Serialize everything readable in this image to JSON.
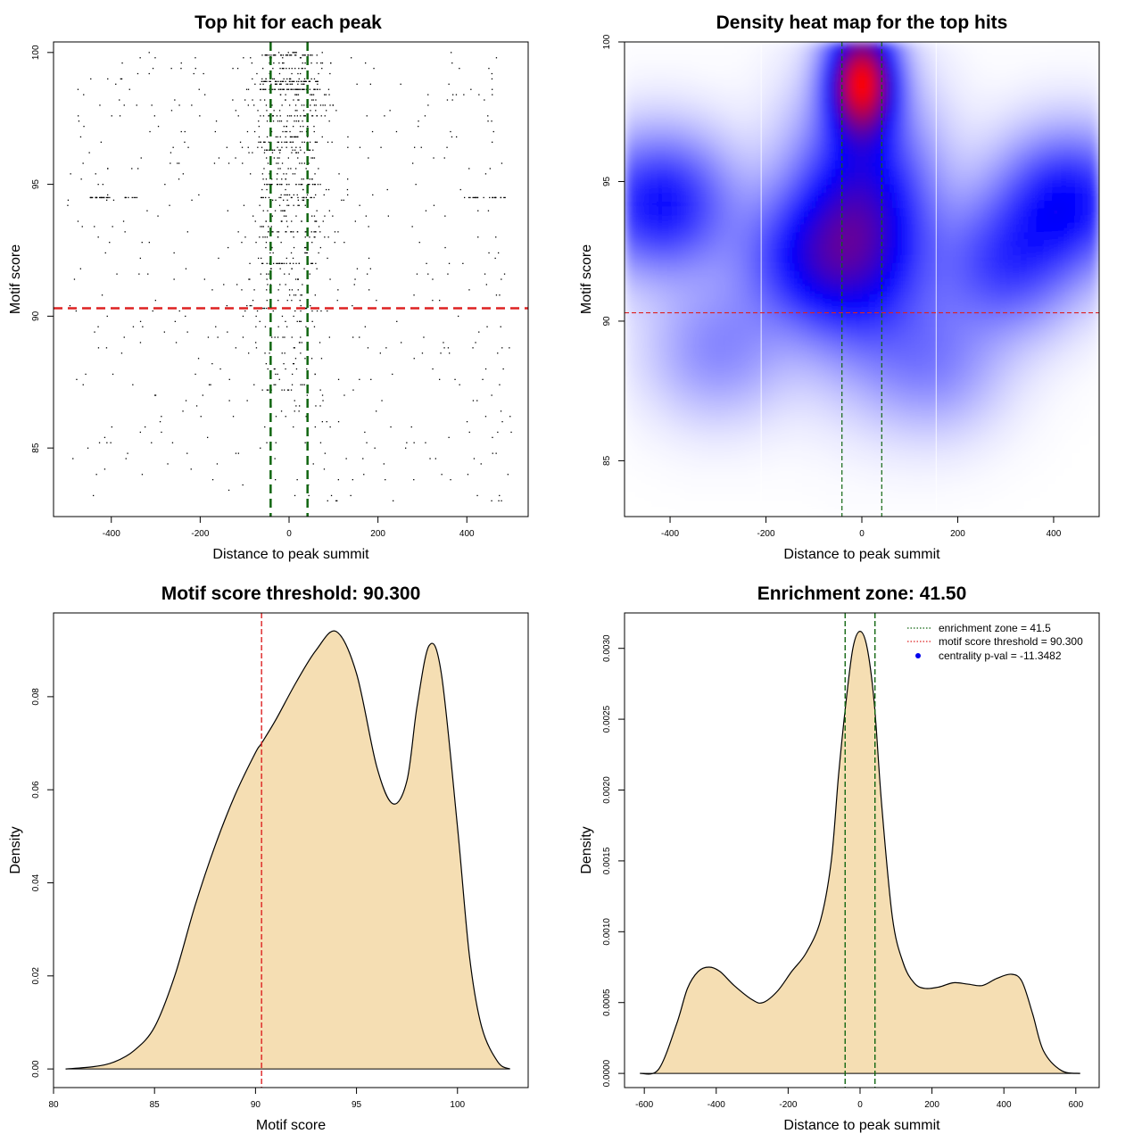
{
  "chart_data": [
    {
      "type": "scatter",
      "title": "Top hit for each peak",
      "xlabel": "Distance to peak summit",
      "ylabel": "Motif score",
      "xlim": [
        -530,
        538
      ],
      "ylim": [
        82.4,
        100.4
      ],
      "xticks": [
        -400,
        -200,
        0,
        200,
        400
      ],
      "yticks": [
        85,
        90,
        95,
        100
      ],
      "hlines": [
        {
          "y": 90.3,
          "color": "#dd2222"
        }
      ],
      "vlines": [
        {
          "x": -41.5,
          "color": "#116611"
        },
        {
          "x": 41.5,
          "color": "#116611"
        }
      ],
      "point_color": "#000000"
    },
    {
      "type": "heatmap",
      "title": "Density heat map for the top hits",
      "xlabel": "Distance to peak summit",
      "ylabel": "Motif score",
      "xlim": [
        -495,
        495
      ],
      "ylim": [
        83,
        100
      ],
      "xticks": [
        -400,
        -200,
        0,
        200,
        400
      ],
      "yticks": [
        85,
        90,
        95,
        100
      ],
      "hlines": [
        {
          "y": 90.3,
          "color": "#dd2222"
        }
      ],
      "vlines": [
        {
          "x": -41.5,
          "color": "#116611"
        },
        {
          "x": 41.5,
          "color": "#116611"
        }
      ],
      "light_vlines": [
        -210,
        155
      ],
      "colors": [
        "#ffffff",
        "#0000ff",
        "#ff0000"
      ],
      "density_peaks": [
        {
          "x": 0,
          "y": 98.6,
          "weight": 1.0
        },
        {
          "x": 0,
          "y": 93.5,
          "weight": 0.55
        },
        {
          "x": -420,
          "y": 94.2,
          "weight": 0.4
        },
        {
          "x": 430,
          "y": 94.3,
          "weight": 0.4
        },
        {
          "x": -120,
          "y": 92.2,
          "weight": 0.28
        },
        {
          "x": 300,
          "y": 92,
          "weight": 0.28
        },
        {
          "x": -300,
          "y": 89,
          "weight": 0.15
        },
        {
          "x": 150,
          "y": 88.5,
          "weight": 0.15
        }
      ]
    },
    {
      "type": "area",
      "title": "Motif score threshold: 90.300",
      "xlabel": "Motif score",
      "ylabel": "Density",
      "xlim": [
        80,
        103.5
      ],
      "ylim": [
        -0.004,
        0.098
      ],
      "xticks": [
        80,
        85,
        90,
        95,
        100
      ],
      "yticks": [
        0.0,
        0.02,
        0.04,
        0.06,
        0.08
      ],
      "yticklabels": [
        "0.00",
        "0.02",
        "0.04",
        "0.06",
        "0.08"
      ],
      "vlines": [
        {
          "x": 90.3,
          "color": "#dd2222"
        }
      ],
      "fill": "#f5deb3",
      "x": [
        80.6,
        82,
        83,
        84,
        85,
        86,
        87,
        88,
        89,
        90,
        90.3,
        91,
        92,
        93,
        94,
        95,
        96,
        96.8,
        97.5,
        98,
        98.6,
        99.2,
        100,
        100.6,
        101.2,
        102,
        102.6
      ],
      "y": [
        0.0,
        0.0005,
        0.0015,
        0.004,
        0.009,
        0.02,
        0.035,
        0.048,
        0.059,
        0.068,
        0.07,
        0.075,
        0.083,
        0.09,
        0.094,
        0.085,
        0.065,
        0.057,
        0.062,
        0.078,
        0.091,
        0.085,
        0.052,
        0.024,
        0.009,
        0.0015,
        0.0
      ]
    },
    {
      "type": "area",
      "title": "Enrichment zone: 41.50",
      "xlabel": "Distance to peak summit",
      "ylabel": "Density",
      "xlim": [
        -655,
        665
      ],
      "ylim": [
        -0.0001,
        0.00325
      ],
      "xticks": [
        -600,
        -400,
        -200,
        0,
        200,
        400,
        600
      ],
      "yticks": [
        0.0,
        0.0005,
        0.001,
        0.0015,
        0.002,
        0.0025,
        0.003
      ],
      "yticklabels": [
        "0.0000",
        "0.0005",
        "0.0010",
        "0.0015",
        "0.0020",
        "0.0025",
        "0.0030"
      ],
      "vlines": [
        {
          "x": -41.5,
          "color": "#116611"
        },
        {
          "x": 41.5,
          "color": "#116611"
        }
      ],
      "fill": "#f5deb3",
      "x": [
        -612,
        -560,
        -510,
        -480,
        -450,
        -420,
        -390,
        -350,
        -300,
        -270,
        -230,
        -190,
        -150,
        -110,
        -80,
        -60,
        -40,
        -20,
        0,
        20,
        40,
        60,
        90,
        120,
        150,
        180,
        220,
        260,
        300,
        340,
        380,
        420,
        450,
        480,
        510,
        560,
        612
      ],
      "y": [
        0.0,
        3e-05,
        0.00035,
        0.0006,
        0.00072,
        0.00075,
        0.00072,
        0.00062,
        0.00052,
        0.0005,
        0.00058,
        0.00072,
        0.00085,
        0.00108,
        0.0015,
        0.0021,
        0.0026,
        0.003,
        0.00312,
        0.003,
        0.0026,
        0.0019,
        0.0011,
        0.00078,
        0.00064,
        0.0006,
        0.00061,
        0.00064,
        0.00063,
        0.00062,
        0.00067,
        0.0007,
        0.00065,
        0.00042,
        0.00016,
        2e-05,
        0.0
      ],
      "legend": {
        "placement": "top-right",
        "entries": [
          {
            "label": "enrichment zone = 41.5",
            "color": "#116611",
            "style": "dotted-line"
          },
          {
            "label": "motif score threshold = 90.300",
            "color": "#dd2222",
            "style": "dotted-line"
          },
          {
            "label": "centrality p-val = -11.3482",
            "color": "#0000ee",
            "style": "point"
          }
        ]
      }
    }
  ]
}
